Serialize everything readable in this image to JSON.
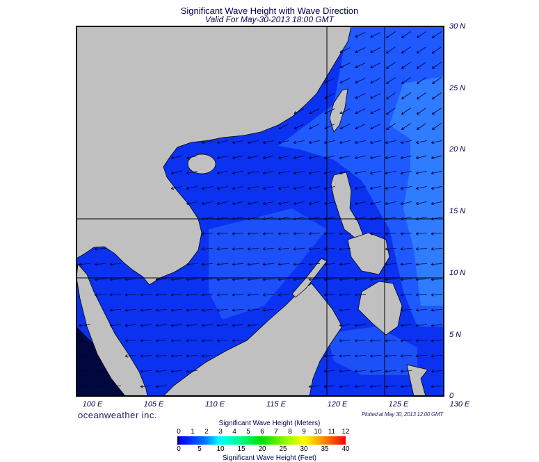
{
  "title": "Significant Wave Height with Wave Direction",
  "subtitle": "Valid For May-30-2013 18:00 GMT",
  "lat_labels": [
    "30 N",
    "25 N",
    "20 N",
    "15 N",
    "10 N",
    "5 N",
    "0"
  ],
  "lon_labels": [
    "100 E",
    "105 E",
    "110 E",
    "115 E",
    "120 E",
    "125 E",
    "130 E"
  ],
  "brand": "oceanweather inc.",
  "plotted": "Plotted at May 30, 2013 12:00 GMT",
  "colorbar": {
    "title_meters": "Significant Wave Height (Meters)",
    "title_feet": "Significant Wave Height (Feet)",
    "meters_ticks": [
      "0",
      "1",
      "2",
      "3",
      "4",
      "5",
      "6",
      "7",
      "8",
      "9",
      "10",
      "11",
      "12"
    ],
    "feet_ticks": [
      "0",
      "5",
      "10",
      "15",
      "20",
      "25",
      "30",
      "35",
      "40"
    ]
  },
  "colors": {
    "land": "#c0c0c0",
    "sea_low": "#0a32f0",
    "sea_mid": "#1e5aff",
    "sea_high": "#2f7cff"
  },
  "map": {
    "lon_range": [
      100,
      130
    ],
    "lat_range": [
      0,
      30
    ],
    "field": "significant wave height",
    "arrows": "wave direction"
  }
}
